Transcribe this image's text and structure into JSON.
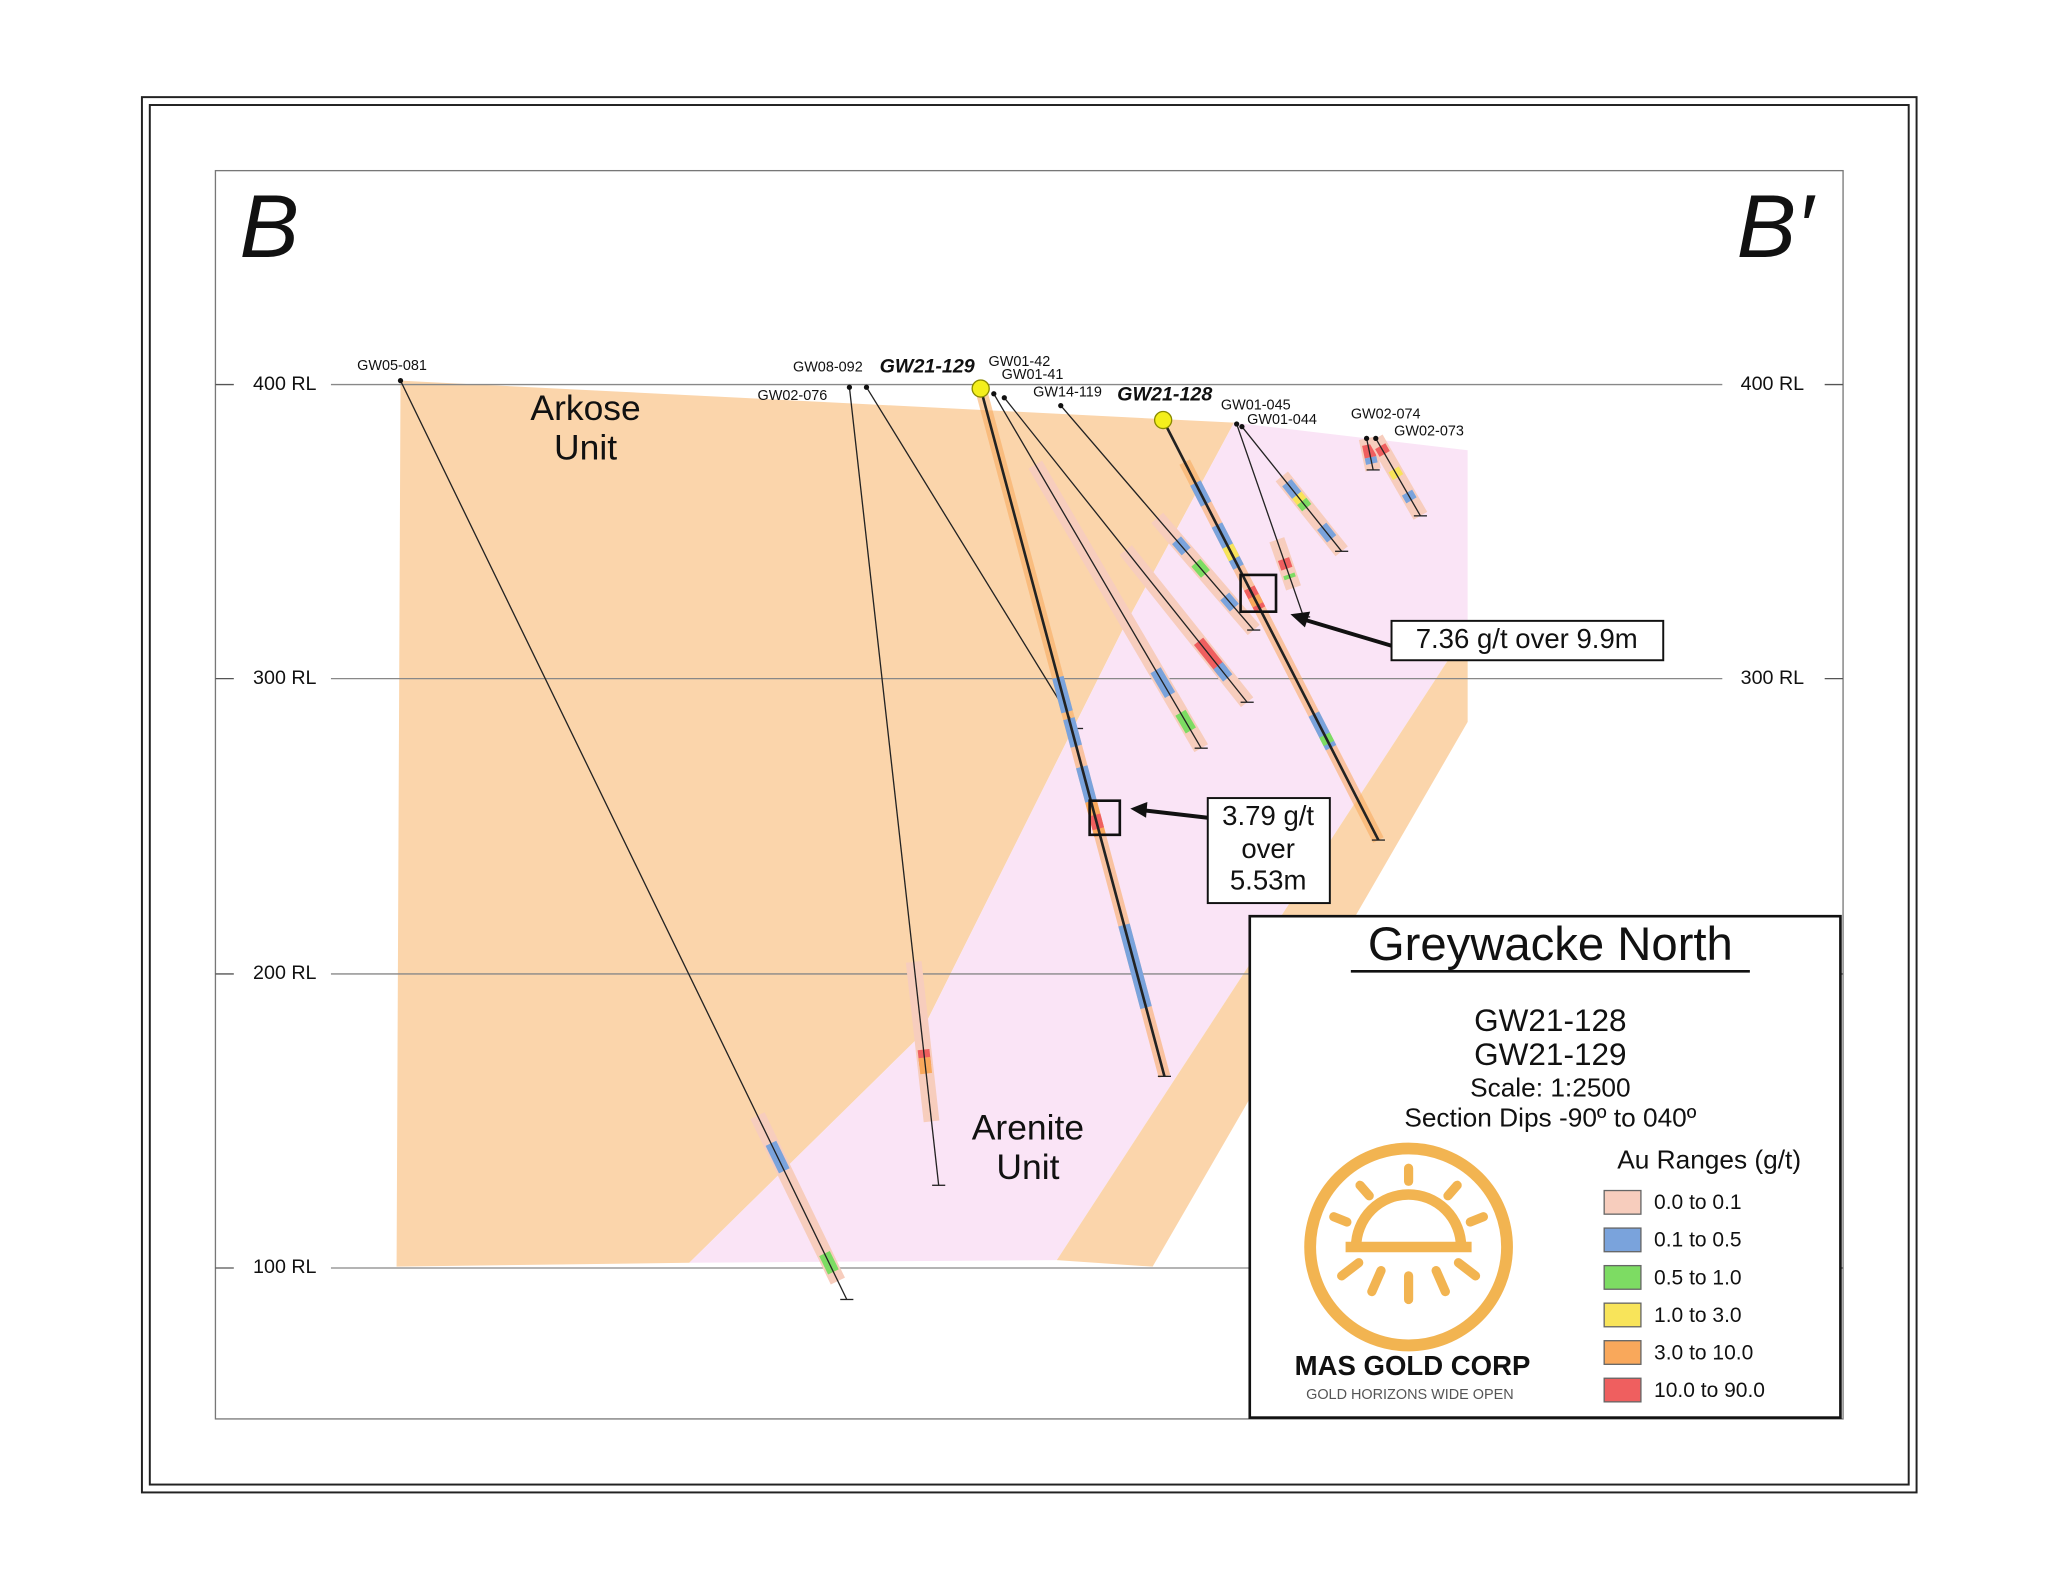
{
  "section": {
    "left": "B",
    "right": "B′"
  },
  "levels": [
    "400 RL",
    "300 RL",
    "200 RL",
    "100 RL"
  ],
  "units": [
    {
      "lines": [
        "Arkose",
        "Unit"
      ]
    },
    {
      "lines": [
        "Arenite",
        "Unit"
      ]
    }
  ],
  "holes": [
    "GW05-081",
    "GW08-092",
    "GW02-076",
    "GW21-129",
    "GW01-42",
    "GW01-41",
    "GW14-119",
    "GW21-128",
    "GW01-045",
    "GW01-044",
    "GW02-074",
    "GW02-073"
  ],
  "callouts": [
    {
      "lines": [
        "7.36 g/t over 9.9m"
      ]
    },
    {
      "lines": [
        "3.79 g/t",
        "over",
        "5.53m"
      ]
    }
  ],
  "legend": {
    "title": "Greywacke North",
    "holes": [
      "GW21-128",
      "GW21-129"
    ],
    "scale": "Scale: 1:2500",
    "dips": "Section Dips -90º to 040º",
    "ranges_title": "Au Ranges (g/t)",
    "ranges": [
      {
        "label": "0.0 to 0.1",
        "color": "#f7cdbd"
      },
      {
        "label": "0.1 to 0.5",
        "color": "#7aa3dc"
      },
      {
        "label": "0.5 to 1.0",
        "color": "#7ddc63"
      },
      {
        "label": "1.0 to 3.0",
        "color": "#f8e45a"
      },
      {
        "label": "3.0 to 10.0",
        "color": "#f9a85b"
      },
      {
        "label": "10.0 to 90.0",
        "color": "#ef5f5f"
      }
    ]
  },
  "logo": {
    "name": "MAS GOLD CORP",
    "tagline": "GOLD HORIZONS WIDE OPEN"
  }
}
